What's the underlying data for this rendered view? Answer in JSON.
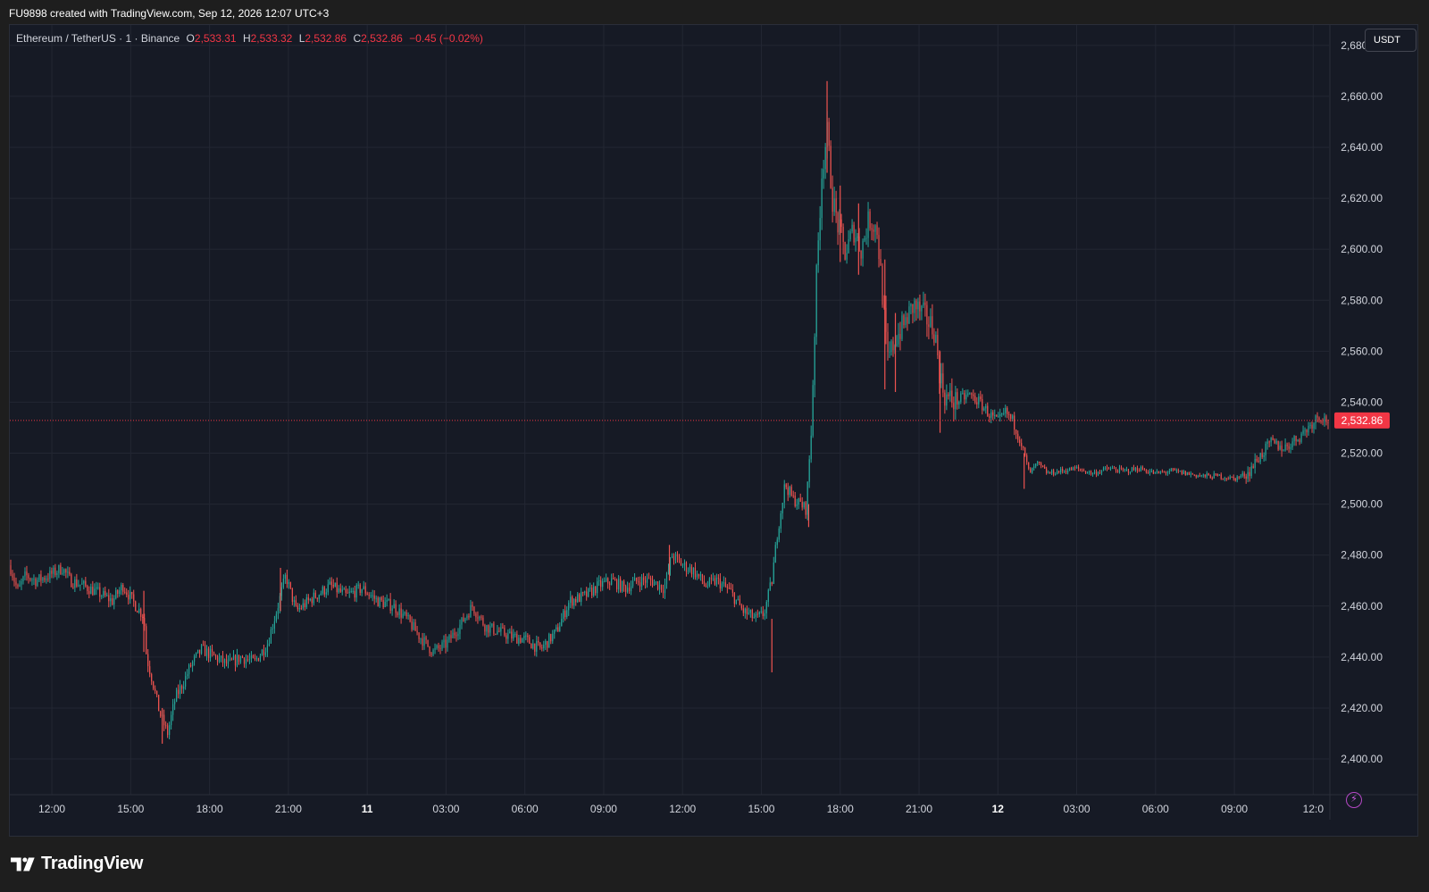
{
  "header": {
    "caption": "FU9898 created with TradingView.com, Sep 12, 2026 12:07 UTC+3"
  },
  "legend": {
    "symbol": "Ethereum / TetherUS · 1 · Binance",
    "o_label": "O",
    "o_value": "2,533.31",
    "h_label": "H",
    "h_value": "2,533.32",
    "l_label": "L",
    "l_value": "2,532.86",
    "c_label": "C",
    "c_value": "2,532.86",
    "change": "−0.45 (−0.02%)"
  },
  "currency_button": "USDT",
  "lightning_icon": "lightning-icon",
  "footer": {
    "brand": "TradingView",
    "logo_icon": "tradingview-logo-icon"
  },
  "colors": {
    "up": "#26a69a",
    "down": "#ef5350",
    "background": "#161a25",
    "grid": "#232733",
    "last_price": "#f23645"
  },
  "chart_data": {
    "type": "candlestick",
    "title": "Ethereum / TetherUS · 1 · Binance",
    "interval": "1 minute",
    "ylim": [
      2386,
      2688
    ],
    "y_ticks": [
      "2,680.00",
      "2,660.00",
      "2,640.00",
      "2,620.00",
      "2,600.00",
      "2,580.00",
      "2,560.00",
      "2,540.00",
      "2,520.00",
      "2,500.00",
      "2,480.00",
      "2,460.00",
      "2,440.00",
      "2,420.00",
      "2,400.00"
    ],
    "y_tick_values": [
      2680,
      2660,
      2640,
      2620,
      2600,
      2580,
      2560,
      2540,
      2520,
      2500,
      2480,
      2460,
      2440,
      2420,
      2400
    ],
    "x_ticks": [
      {
        "label": "12:00",
        "hours": 1.6,
        "bold": false
      },
      {
        "label": "15:00",
        "hours": 4.6,
        "bold": false
      },
      {
        "label": "18:00",
        "hours": 7.6,
        "bold": false
      },
      {
        "label": "21:00",
        "hours": 10.6,
        "bold": false
      },
      {
        "label": "11",
        "hours": 13.6,
        "bold": true
      },
      {
        "label": "03:00",
        "hours": 16.6,
        "bold": false
      },
      {
        "label": "06:00",
        "hours": 19.6,
        "bold": false
      },
      {
        "label": "09:00",
        "hours": 22.6,
        "bold": false
      },
      {
        "label": "12:00",
        "hours": 25.6,
        "bold": false
      },
      {
        "label": "15:00",
        "hours": 28.6,
        "bold": false
      },
      {
        "label": "18:00",
        "hours": 31.6,
        "bold": false
      },
      {
        "label": "21:00",
        "hours": 34.6,
        "bold": false
      },
      {
        "label": "12",
        "hours": 37.6,
        "bold": true
      },
      {
        "label": "03:00",
        "hours": 40.6,
        "bold": false
      },
      {
        "label": "06:00",
        "hours": 43.6,
        "bold": false
      },
      {
        "label": "09:00",
        "hours": 46.6,
        "bold": false
      },
      {
        "label": "12:0",
        "hours": 49.6,
        "bold": false
      }
    ],
    "price_path": [
      [
        0.0,
        2476
      ],
      [
        0.3,
        2466
      ],
      [
        0.6,
        2472
      ],
      [
        1.0,
        2470
      ],
      [
        1.5,
        2472
      ],
      [
        2.0,
        2475
      ],
      [
        2.3,
        2470
      ],
      [
        2.8,
        2468
      ],
      [
        3.4,
        2465
      ],
      [
        3.9,
        2462
      ],
      [
        4.3,
        2468
      ],
      [
        4.8,
        2460
      ],
      [
        5.1,
        2456
      ],
      [
        5.2,
        2440
      ],
      [
        5.4,
        2432
      ],
      [
        5.7,
        2418
      ],
      [
        6.0,
        2410
      ],
      [
        6.3,
        2424
      ],
      [
        6.6,
        2430
      ],
      [
        6.9,
        2437
      ],
      [
        7.3,
        2443
      ],
      [
        7.8,
        2440
      ],
      [
        8.3,
        2437
      ],
      [
        8.8,
        2440
      ],
      [
        9.3,
        2438
      ],
      [
        9.8,
        2445
      ],
      [
        10.2,
        2460
      ],
      [
        10.5,
        2472
      ],
      [
        10.9,
        2458
      ],
      [
        11.5,
        2463
      ],
      [
        12.2,
        2468
      ],
      [
        12.8,
        2464
      ],
      [
        13.4,
        2467
      ],
      [
        14.0,
        2462
      ],
      [
        14.6,
        2460
      ],
      [
        15.1,
        2455
      ],
      [
        15.6,
        2448
      ],
      [
        16.1,
        2442
      ],
      [
        16.6,
        2445
      ],
      [
        17.1,
        2452
      ],
      [
        17.6,
        2460
      ],
      [
        18.1,
        2452
      ],
      [
        18.6,
        2450
      ],
      [
        19.1,
        2448
      ],
      [
        19.6,
        2447
      ],
      [
        20.2,
        2443
      ],
      [
        20.8,
        2450
      ],
      [
        21.3,
        2462
      ],
      [
        21.9,
        2464
      ],
      [
        22.4,
        2468
      ],
      [
        22.9,
        2470
      ],
      [
        23.4,
        2467
      ],
      [
        23.9,
        2470
      ],
      [
        24.4,
        2470
      ],
      [
        24.9,
        2467
      ],
      [
        25.2,
        2480
      ],
      [
        25.6,
        2476
      ],
      [
        26.0,
        2474
      ],
      [
        26.5,
        2468
      ],
      [
        26.9,
        2470
      ],
      [
        27.4,
        2466
      ],
      [
        27.9,
        2458
      ],
      [
        28.4,
        2455
      ],
      [
        28.7,
        2457
      ],
      [
        29.0,
        2470
      ],
      [
        29.2,
        2488
      ],
      [
        29.5,
        2508
      ],
      [
        29.8,
        2502
      ],
      [
        30.1,
        2500
      ],
      [
        30.3,
        2498
      ],
      [
        30.5,
        2530
      ],
      [
        30.7,
        2590
      ],
      [
        30.9,
        2630
      ],
      [
        31.1,
        2646
      ],
      [
        31.3,
        2620
      ],
      [
        31.5,
        2610
      ],
      [
        31.8,
        2598
      ],
      [
        32.1,
        2608
      ],
      [
        32.4,
        2600
      ],
      [
        32.7,
        2612
      ],
      [
        33.0,
        2608
      ],
      [
        33.2,
        2583
      ],
      [
        33.4,
        2556
      ],
      [
        33.7,
        2565
      ],
      [
        34.0,
        2570
      ],
      [
        34.4,
        2578
      ],
      [
        34.8,
        2574
      ],
      [
        35.2,
        2568
      ],
      [
        35.4,
        2550
      ],
      [
        35.6,
        2542
      ],
      [
        36.0,
        2540
      ],
      [
        36.5,
        2543
      ],
      [
        36.9,
        2540
      ],
      [
        37.3,
        2535
      ],
      [
        37.6,
        2532
      ],
      [
        37.9,
        2536
      ],
      [
        38.2,
        2532
      ],
      [
        38.5,
        2524
      ],
      [
        38.8,
        2512
      ],
      [
        39.1,
        2516
      ],
      [
        39.5,
        2512
      ],
      [
        40.0,
        2513
      ],
      [
        40.6,
        2514
      ],
      [
        41.2,
        2512
      ],
      [
        41.8,
        2514
      ],
      [
        42.4,
        2513
      ],
      [
        43.0,
        2514
      ],
      [
        43.6,
        2512
      ],
      [
        44.2,
        2513
      ],
      [
        44.8,
        2512
      ],
      [
        45.4,
        2511
      ],
      [
        46.0,
        2511
      ],
      [
        46.6,
        2510
      ],
      [
        47.1,
        2512
      ],
      [
        47.5,
        2518
      ],
      [
        48.0,
        2524
      ],
      [
        48.5,
        2522
      ],
      [
        49.0,
        2526
      ],
      [
        49.4,
        2530
      ],
      [
        49.8,
        2535
      ],
      [
        50.1,
        2532.86
      ]
    ],
    "wicks": [
      {
        "hours": 5.1,
        "high": 2466,
        "low": 2442
      },
      {
        "hours": 5.8,
        "high": 2420,
        "low": 2406
      },
      {
        "hours": 10.3,
        "high": 2475,
        "low": 2458
      },
      {
        "hours": 25.1,
        "high": 2484,
        "low": 2470
      },
      {
        "hours": 29.0,
        "high": 2455,
        "low": 2434
      },
      {
        "hours": 30.4,
        "high": 2500,
        "low": 2491
      },
      {
        "hours": 31.1,
        "high": 2666,
        "low": 2630
      },
      {
        "hours": 31.6,
        "high": 2625,
        "low": 2595
      },
      {
        "hours": 32.3,
        "high": 2618,
        "low": 2590
      },
      {
        "hours": 33.3,
        "high": 2596,
        "low": 2545
      },
      {
        "hours": 33.7,
        "high": 2575,
        "low": 2544
      },
      {
        "hours": 35.4,
        "high": 2560,
        "low": 2528
      },
      {
        "hours": 38.6,
        "high": 2520,
        "low": 2506
      }
    ],
    "last_price": 2532.86,
    "last_price_label": "2,532.86",
    "x_range_hours": [
      0,
      50.2
    ]
  }
}
